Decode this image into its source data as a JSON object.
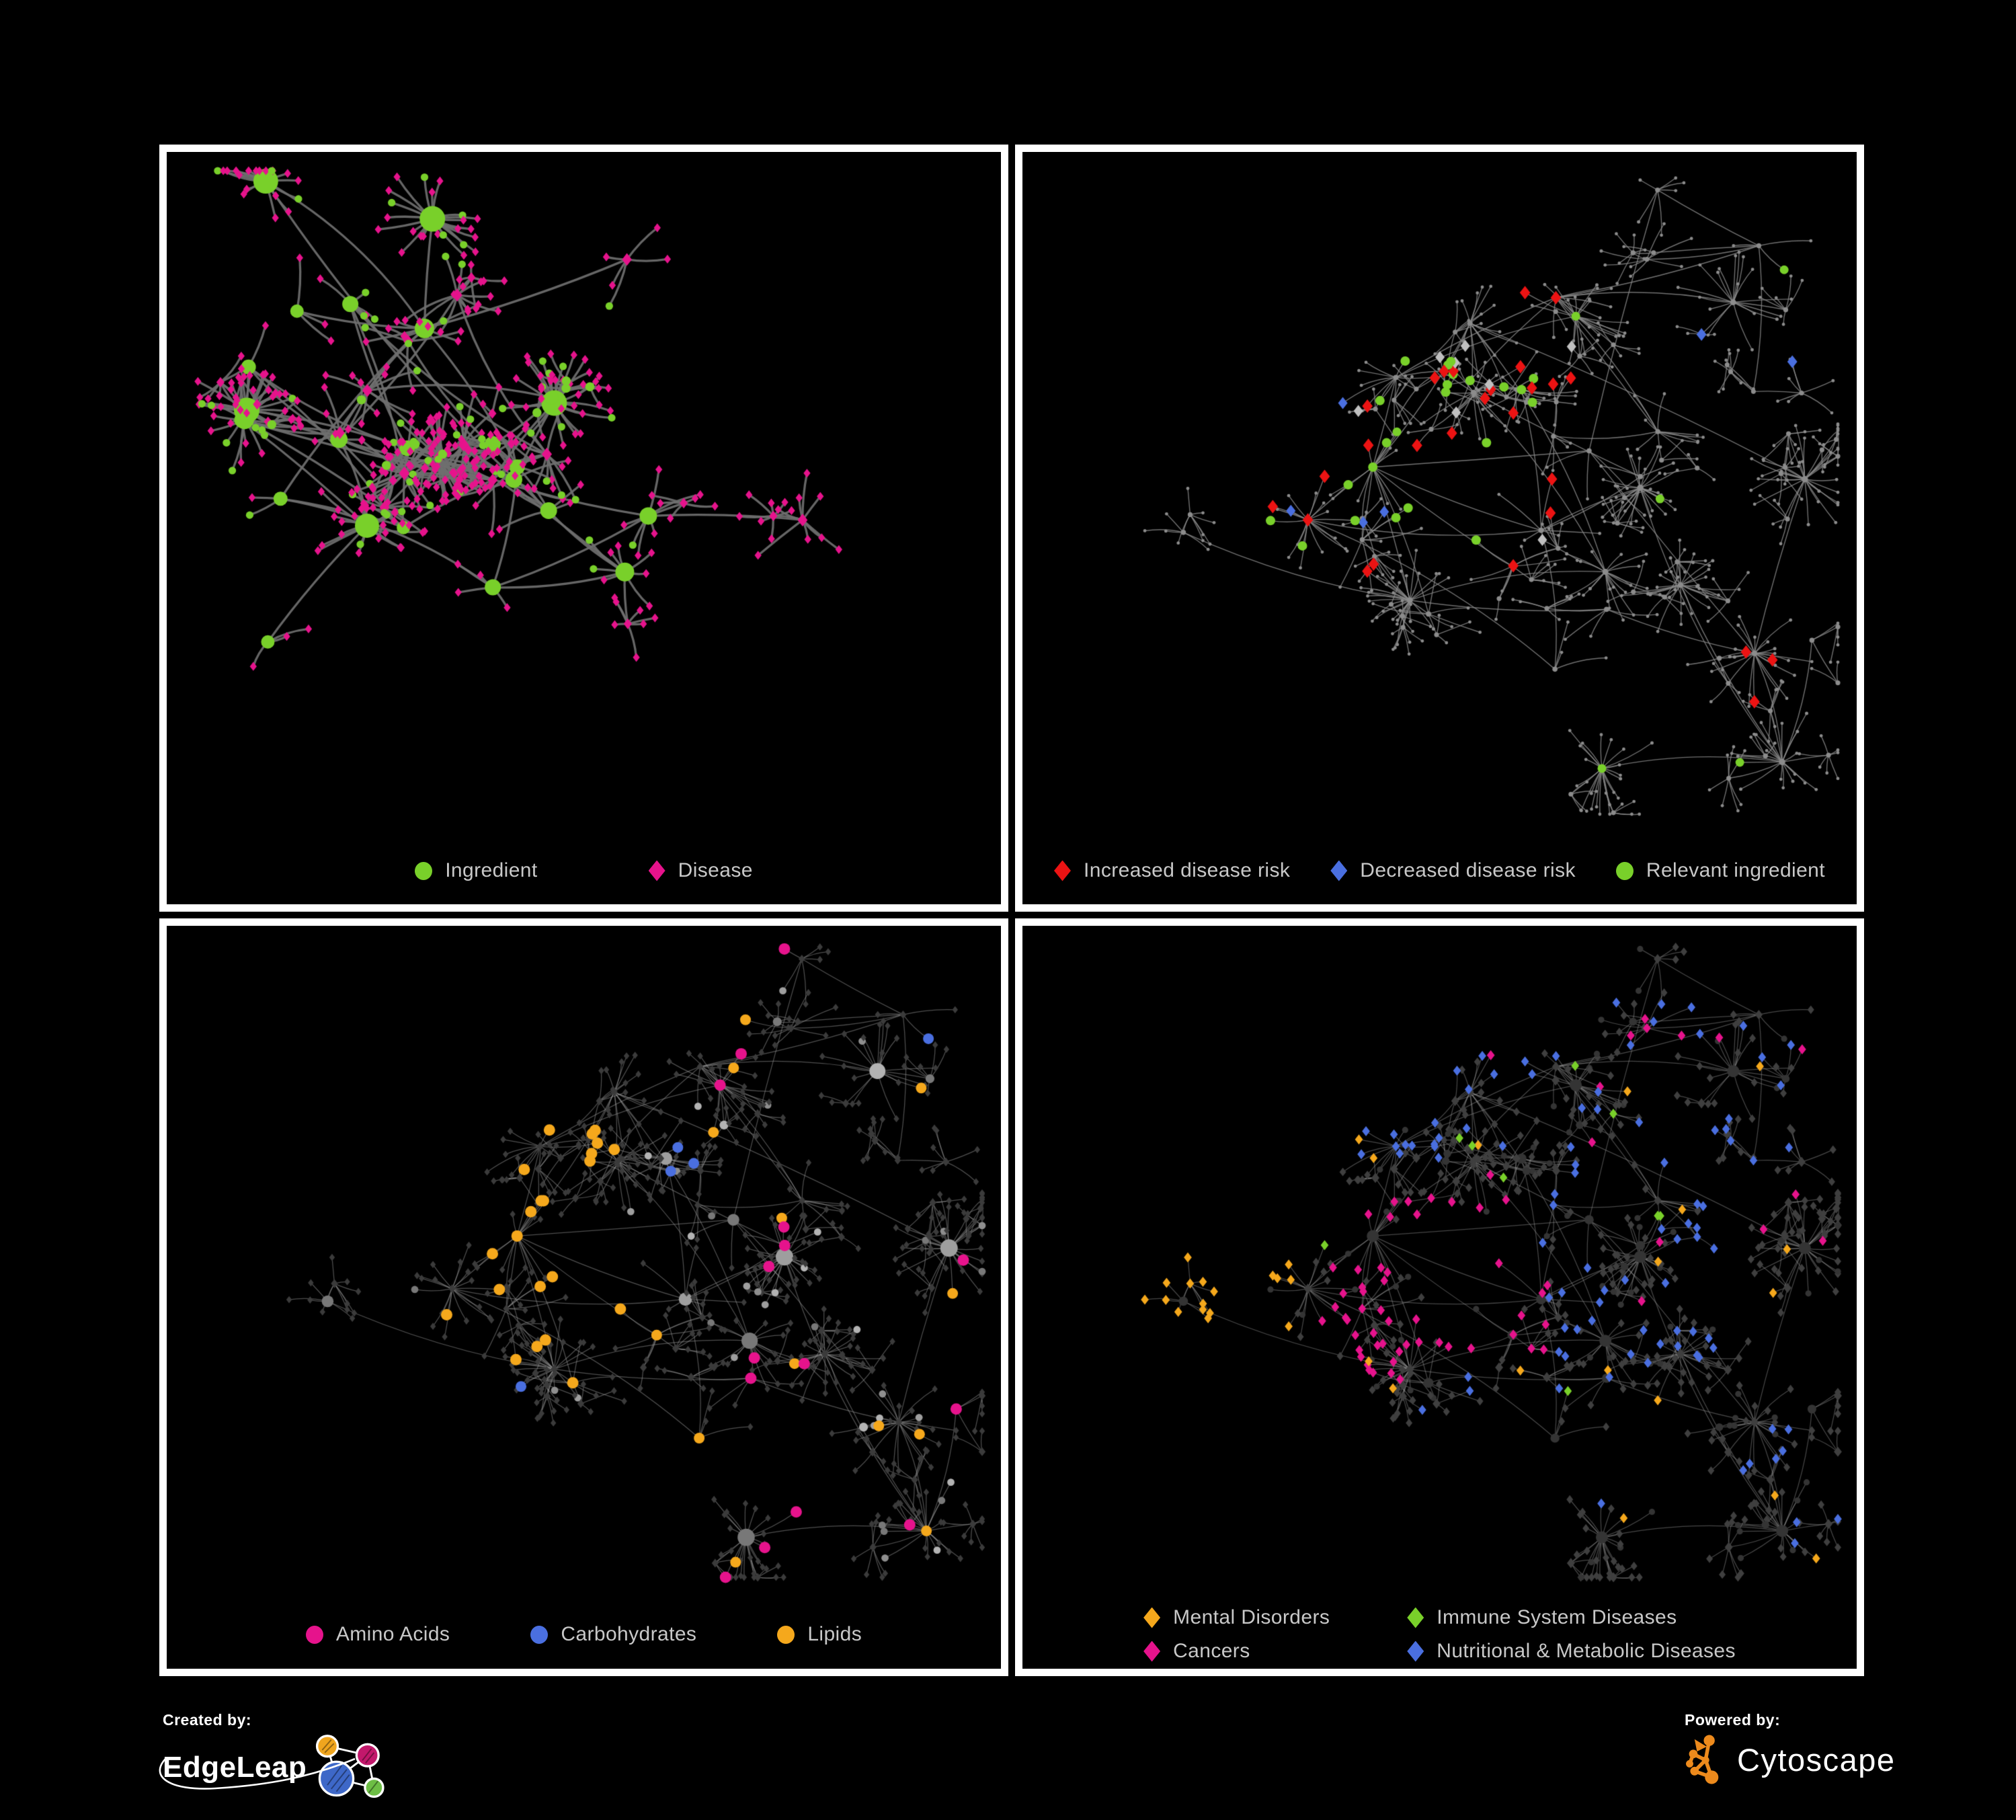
{
  "background": "#000000",
  "legend_text_color": "#c8c8c8",
  "panels": [
    {
      "id": "ingredients-diseases",
      "legend": [
        {
          "label": "Ingredient",
          "shape": "circle",
          "color": "#79D02A"
        },
        {
          "label": "Disease",
          "shape": "diamond",
          "color": "#E6138C"
        }
      ],
      "graph": {
        "seed": 11,
        "edge_color": "#6F6F6F",
        "edge_width": 3.3,
        "edge_alpha": 0.92,
        "curve": 0.12,
        "base": {
          "i": {
            "shape": "circle",
            "color": "#79D02A",
            "r_hub": 8,
            "r_deg": 0.5,
            "r_max": 19,
            "r_leaf": 5.6
          },
          "d": {
            "shape": "diamond",
            "color": "#E6138C",
            "r_hub": 9,
            "r_deg": 0.05,
            "r_max": 11,
            "r_leaf": 6.6
          }
        },
        "highlights": []
      }
    },
    {
      "id": "disease-risk",
      "legend": [
        {
          "label": "Increased disease risk",
          "shape": "diamond",
          "color": "#EC1313"
        },
        {
          "label": "Decreased disease risk",
          "shape": "diamond",
          "color": "#4A6FE0"
        },
        {
          "label": "Relevant ingredient",
          "shape": "circle",
          "color": "#79D02A"
        }
      ],
      "graph": {
        "seed": 23,
        "edge_color": "#8C8C8C",
        "edge_width": 1.4,
        "edge_alpha": 0.8,
        "curve": 0.1,
        "base": {
          "i": {
            "shape": "circle",
            "color": "#8C8C8C",
            "r_hub": 3.6,
            "r_deg": 0.04,
            "r_max": 5,
            "r_leaf": 2.5
          },
          "d": {
            "shape": "circle",
            "color": "#8C8C8C",
            "r_hub": 3.4,
            "r_deg": 0.03,
            "r_max": 5,
            "r_leaf": 2.4
          }
        },
        "highlights": [
          {
            "shape": "diamond",
            "color": "#EC1313",
            "size": 10,
            "count": 22,
            "node_type": "d",
            "region": [
              0.26,
              0.2,
              0.66,
              0.66
            ]
          },
          {
            "shape": "diamond",
            "color": "#EC1313",
            "size": 10,
            "count": 3,
            "node_type": "d",
            "region": [
              0.64,
              0.66,
              0.9,
              0.92
            ]
          },
          {
            "shape": "diamond",
            "color": "#EC1313",
            "size": 10,
            "count": 2,
            "node_type": "d",
            "region": [
              0.55,
              0.12,
              0.78,
              0.35
            ]
          },
          {
            "shape": "diamond",
            "color": "#C0C0C0",
            "size": 9,
            "count": 8,
            "node_type": "d",
            "region": [
              0.28,
              0.25,
              0.68,
              0.62
            ]
          },
          {
            "shape": "diamond",
            "color": "#4A6FE0",
            "size": 9,
            "count": 4,
            "node_type": "d",
            "region": [
              0.26,
              0.3,
              0.48,
              0.6
            ]
          },
          {
            "shape": "diamond",
            "color": "#4A6FE0",
            "size": 9.5,
            "count": 2,
            "node_type": "d",
            "region": [
              0.76,
              0.18,
              0.96,
              0.35
            ]
          },
          {
            "shape": "circle",
            "color": "#79D02A",
            "size": 7,
            "count": 22,
            "node_type": "i",
            "region": [
              0.24,
              0.2,
              0.62,
              0.6
            ]
          },
          {
            "shape": "circle",
            "color": "#79D02A",
            "size": 6.5,
            "count": 6,
            "node_type": "i",
            "region": [
              0.05,
              0.15,
              0.95,
              0.9
            ]
          }
        ]
      }
    },
    {
      "id": "nutrient-classes",
      "legend": [
        {
          "label": "Amino Acids",
          "shape": "circle",
          "color": "#E6138C"
        },
        {
          "label": "Carbohydrates",
          "shape": "circle",
          "color": "#4A6FE0"
        },
        {
          "label": "Lipids",
          "shape": "circle",
          "color": "#F5A81C"
        }
      ],
      "graph": {
        "seed": 23,
        "edge_color": "#9C9C9C",
        "edge_width": 1.25,
        "edge_alpha": 0.5,
        "curve": 0.1,
        "base": {
          "i": {
            "shape": "circle",
            "palette": [
              "#8E8E8E",
              "#9E9E9E",
              "#B3B3B3",
              "#787878"
            ],
            "color": "#9E9E9E",
            "r_hub": 7.5,
            "r_deg": 0.22,
            "r_max": 13,
            "r_leaf": 5.4
          },
          "d": {
            "shape": "diamond",
            "color": "#3B3B3B",
            "r_hub": 6,
            "r_deg": 0.03,
            "r_max": 7.5,
            "r_leaf": 5.4
          }
        },
        "highlights": [
          {
            "shape": "circle",
            "color": "#F5A81C",
            "size": 8.5,
            "count": 40,
            "node_type": "i",
            "region": [
              0.26,
              0.16,
              0.54,
              0.46
            ]
          },
          {
            "shape": "circle",
            "color": "#F5A81C",
            "size": 8.5,
            "count": 20,
            "node_type": "i",
            "region": [
              0.3,
              0.46,
              0.58,
              0.68
            ]
          },
          {
            "shape": "circle",
            "color": "#F5A81C",
            "size": 8,
            "count": 13,
            "node_type": "i",
            "region": [
              0.05,
              0.03,
              0.97,
              0.97
            ]
          },
          {
            "shape": "circle",
            "color": "#4A6FE0",
            "size": 8.5,
            "count": 10,
            "node_type": "i",
            "region": [
              0.38,
              0.15,
              0.58,
              0.34
            ]
          },
          {
            "shape": "circle",
            "color": "#4A6FE0",
            "size": 8,
            "count": 5,
            "node_type": "i",
            "region": [
              0.03,
              0.1,
              0.97,
              0.95
            ]
          },
          {
            "shape": "circle",
            "color": "#E6138C",
            "size": 8.5,
            "count": 15,
            "node_type": "i",
            "region": [
              0.02,
              0.02,
              0.98,
              0.98
            ]
          }
        ]
      }
    },
    {
      "id": "disease-categories",
      "legend": [
        {
          "label": "Mental Disorders",
          "shape": "diamond",
          "color": "#F5A81C"
        },
        {
          "label": "Immune System Diseases",
          "shape": "diamond",
          "color": "#79D02A"
        },
        {
          "label": "Cancers",
          "shape": "diamond",
          "color": "#E6138C"
        },
        {
          "label": "Nutritional & Metabolic Diseases",
          "shape": "diamond",
          "color": "#4A6FE0"
        }
      ],
      "graph": {
        "seed": 23,
        "edge_color": "#9C9C9C",
        "edge_width": 1.25,
        "edge_alpha": 0.45,
        "curve": 0.1,
        "base": {
          "i": {
            "shape": "circle",
            "color": "#343434",
            "r_hub": 6,
            "r_deg": 0.15,
            "r_max": 9,
            "r_leaf": 4.6
          },
          "d": {
            "shape": "diamond",
            "color": "#3F3F3F",
            "r_hub": 7,
            "r_deg": 0.03,
            "r_max": 8,
            "r_leaf": 6.4
          }
        },
        "highlights": [
          {
            "shape": "diamond",
            "color": "#F5A81C",
            "size": 7.5,
            "count": 75,
            "node_type": "d",
            "region": [
              0.06,
              0.38,
              0.32,
              0.7
            ]
          },
          {
            "shape": "diamond",
            "color": "#F5A81C",
            "size": 7.5,
            "count": 18,
            "node_type": "d",
            "region": [
              0.03,
              0.03,
              0.97,
              0.97
            ]
          },
          {
            "shape": "diamond",
            "color": "#E6138C",
            "size": 7.5,
            "count": 48,
            "node_type": "d",
            "region": [
              0.37,
              0.4,
              0.63,
              0.68
            ]
          },
          {
            "shape": "diamond",
            "color": "#E6138C",
            "size": 7.5,
            "count": 18,
            "node_type": "d",
            "region": [
              0.3,
              0.04,
              0.97,
              0.6
            ]
          },
          {
            "shape": "diamond",
            "color": "#4A6FE0",
            "size": 7.5,
            "count": 32,
            "node_type": "d",
            "region": [
              0.6,
              0.35,
              0.88,
              0.64
            ]
          },
          {
            "shape": "diamond",
            "color": "#4A6FE0",
            "size": 7.5,
            "count": 30,
            "node_type": "d",
            "region": [
              0.52,
              0.02,
              0.98,
              0.35
            ]
          },
          {
            "shape": "diamond",
            "color": "#4A6FE0",
            "size": 7.5,
            "count": 20,
            "node_type": "d",
            "region": [
              0.3,
              0.62,
              0.98,
              0.96
            ]
          },
          {
            "shape": "diamond",
            "color": "#4A6FE0",
            "size": 7.5,
            "count": 12,
            "node_type": "d",
            "region": [
              0.02,
              0.02,
              0.5,
              0.35
            ]
          },
          {
            "shape": "diamond",
            "color": "#79D02A",
            "size": 7.5,
            "count": 9,
            "node_type": "d",
            "region": [
              0.22,
              0.08,
              0.78,
              0.72
            ]
          }
        ]
      }
    }
  ],
  "footer": {
    "created_by_label": "Created by:",
    "brand_left": "EdgeLeap",
    "powered_by_label": "Powered by:",
    "brand_right": "Cytoscape"
  },
  "logo_colors": {
    "edgeleap_blue": "#3E68C8",
    "edgeleap_orange": "#EFA51E",
    "edgeleap_magenta": "#C2186B",
    "edgeleap_green": "#6DBE45",
    "cytoscape_orange": "#ED8A1C"
  }
}
